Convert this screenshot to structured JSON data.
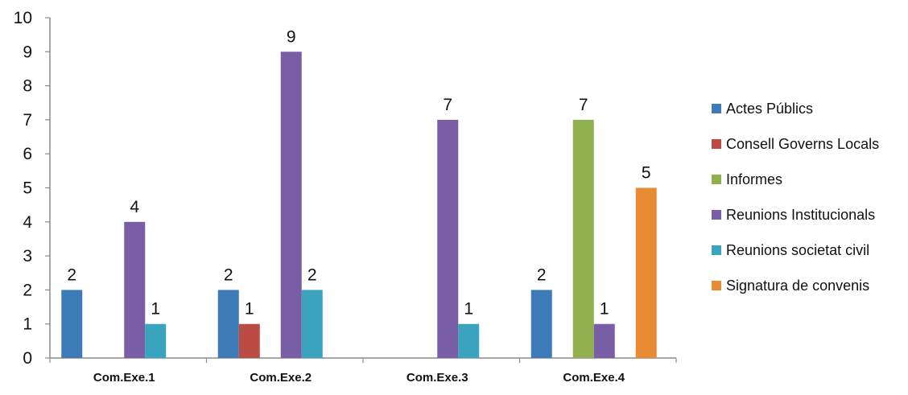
{
  "chart_data": {
    "type": "bar",
    "categories": [
      "Com.Exe.1",
      "Com.Exe.2",
      "Com.Exe.3",
      "Com.Exe.4"
    ],
    "series": [
      {
        "name": "Actes Públics",
        "color": "#3c7ab8",
        "values": [
          2,
          2,
          null,
          2
        ]
      },
      {
        "name": "Consell Governs Locals",
        "color": "#bc4a45",
        "values": [
          null,
          1,
          null,
          null
        ]
      },
      {
        "name": "Informes",
        "color": "#8fb04c",
        "values": [
          null,
          null,
          null,
          7
        ]
      },
      {
        "name": "Reunions Institucionals",
        "color": "#7a5ea5",
        "values": [
          4,
          9,
          7,
          1
        ]
      },
      {
        "name": "Reunions societat civil",
        "color": "#3aa4bf",
        "values": [
          1,
          2,
          1,
          null
        ]
      },
      {
        "name": "Signatura de convenis",
        "color": "#e98a34",
        "values": [
          null,
          null,
          null,
          5
        ]
      }
    ],
    "title": "",
    "xlabel": "",
    "ylabel": "",
    "ylim": [
      0,
      10
    ],
    "yticks": [
      "0",
      "1",
      "2",
      "3",
      "4",
      "5",
      "6",
      "7",
      "8",
      "9",
      "10"
    ],
    "grid": false,
    "legend": "right",
    "data_labels": true
  }
}
